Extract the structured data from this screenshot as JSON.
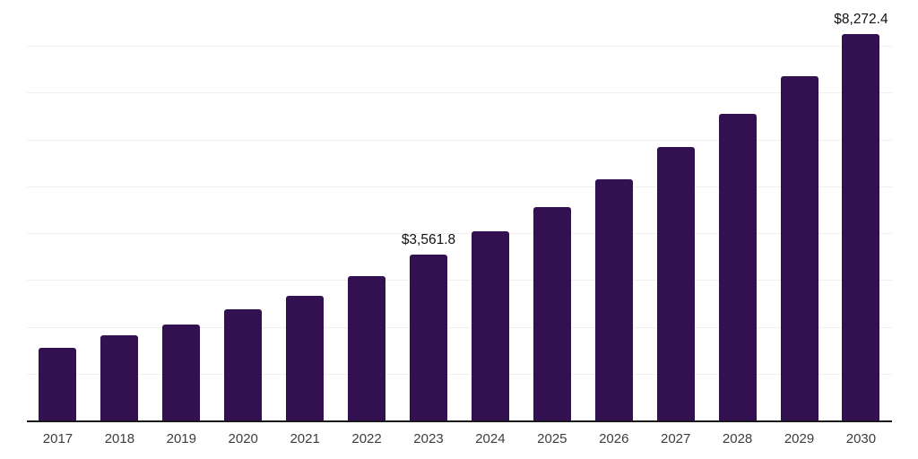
{
  "chart_data": {
    "type": "bar",
    "title": "",
    "xlabel": "",
    "ylabel": "",
    "categories": [
      "2017",
      "2018",
      "2019",
      "2020",
      "2021",
      "2022",
      "2023",
      "2024",
      "2025",
      "2026",
      "2027",
      "2028",
      "2029",
      "2030"
    ],
    "values": [
      1580,
      1830,
      2060,
      2400,
      2690,
      3110,
      3561.8,
      4060,
      4580,
      5170,
      5860,
      6560,
      7370,
      8272.4
    ],
    "data_labels": [
      "",
      "",
      "",
      "",
      "",
      "",
      "$3,561.8",
      "",
      "",
      "",
      "",
      "",
      "",
      "$8,272.4"
    ],
    "ylim": [
      0,
      9000
    ],
    "gridline_interval": 1000,
    "grid": "horizontal",
    "legend": "none",
    "bar_color": "#331150",
    "axis_line_color": "#1a1a1a",
    "gridline_color": "#f0f0f0",
    "tick_label_color": "#3d3d3d",
    "data_label_color": "#111111"
  }
}
